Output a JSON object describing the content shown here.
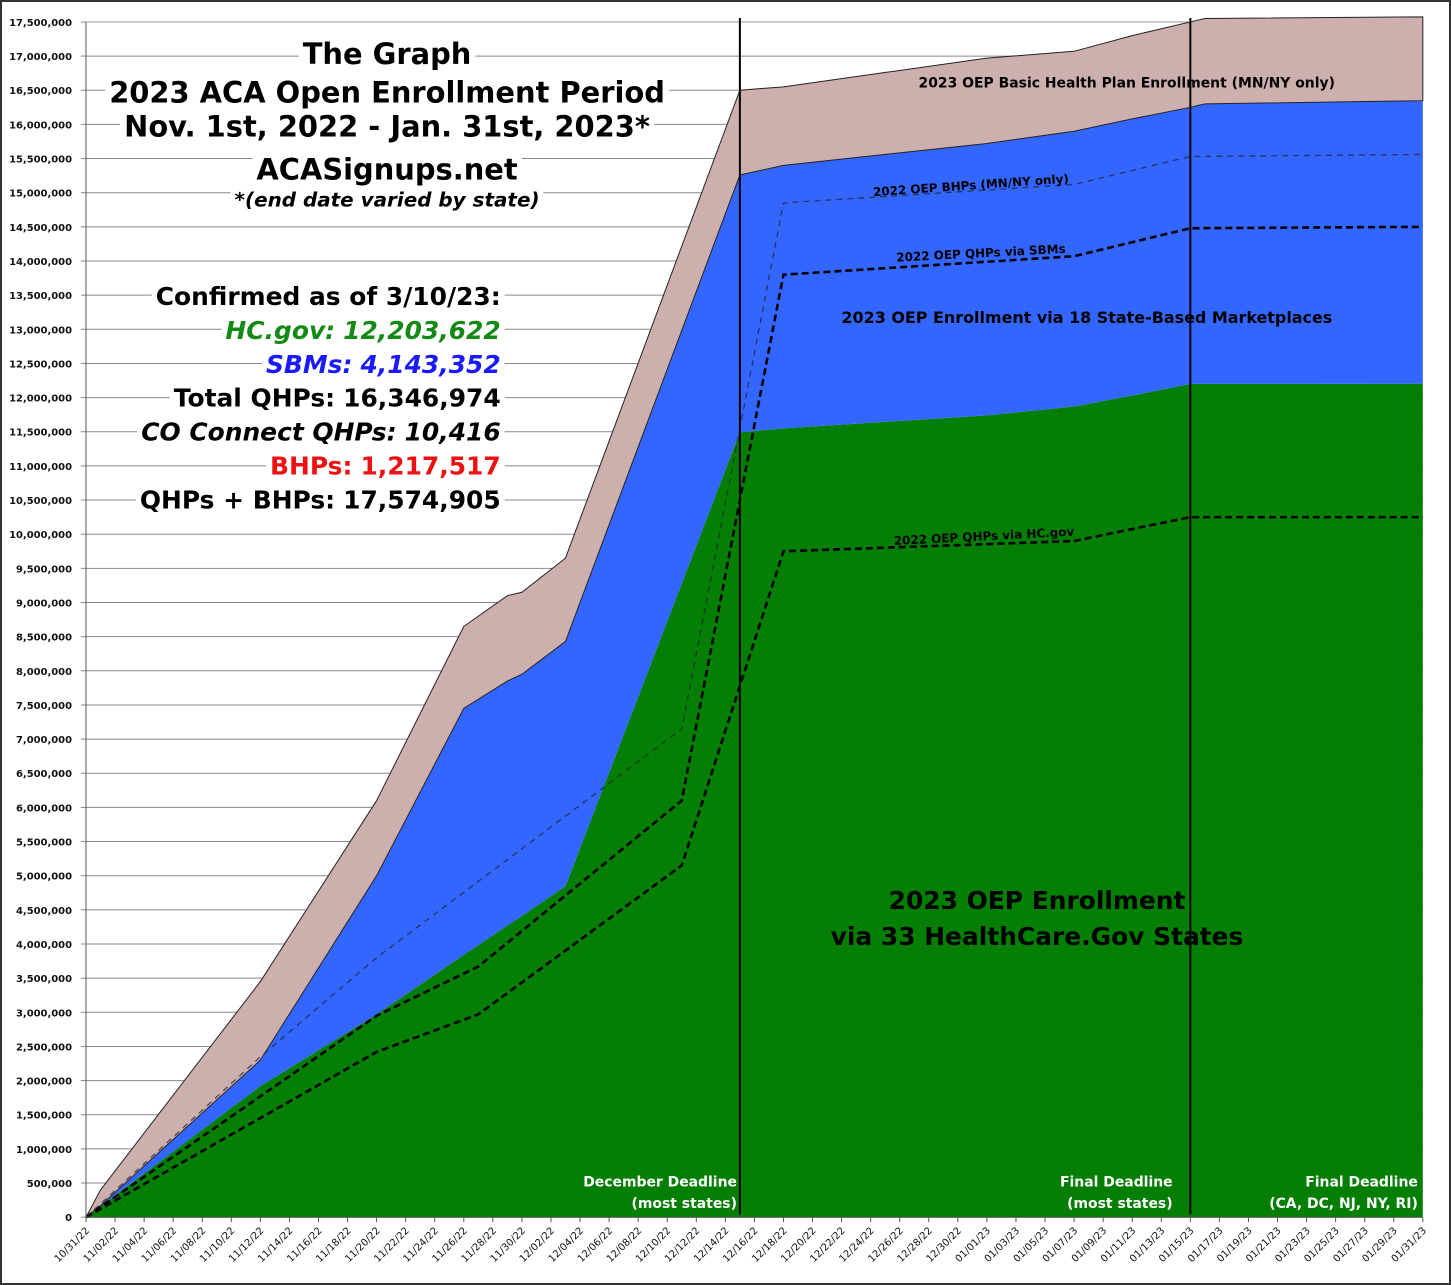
{
  "chart_data": {
    "type": "area",
    "stacked": true,
    "title_lines": [
      "The Graph",
      "2023 ACA Open Enrollment Period",
      "Nov. 1st, 2022 - Jan. 31st, 2023*",
      "ACASignups.net",
      "*(end date varied by state)"
    ],
    "summary": {
      "heading": "Confirmed as of 3/10/23:",
      "lines": [
        {
          "label": "HC.gov:",
          "value": "12,203,622",
          "color": "#138a13",
          "italic": true
        },
        {
          "label": "SBMs:",
          "value": "4,143,352",
          "color": "#1a1aff",
          "italic": true
        },
        {
          "label": "Total QHPs:",
          "value": "16,346,974",
          "color": "#000000",
          "italic": false
        },
        {
          "label": "CO Connect QHPs:",
          "value": "10,416",
          "color": "#000000",
          "italic": true
        },
        {
          "label": "BHPs:",
          "value": "1,217,517",
          "color": "#ee1111",
          "italic": false
        },
        {
          "label": "QHPs + BHPs:",
          "value": "17,574,905",
          "color": "#000000",
          "italic": false
        }
      ]
    },
    "ylim": [
      0,
      17500000
    ],
    "ytick_step": 500000,
    "xlim": [
      "10/31/22",
      "01/31/23"
    ],
    "x_tick_labels": [
      "10/31/22",
      "11/02/22",
      "11/04/22",
      "11/06/22",
      "11/08/22",
      "11/10/22",
      "11/12/22",
      "11/14/22",
      "11/16/22",
      "11/18/22",
      "11/20/22",
      "11/22/22",
      "11/24/22",
      "11/26/22",
      "11/28/22",
      "11/30/22",
      "12/02/22",
      "12/04/22",
      "12/06/22",
      "12/08/22",
      "12/10/22",
      "12/12/22",
      "12/14/22",
      "12/16/22",
      "12/18/22",
      "12/20/22",
      "12/22/22",
      "12/24/22",
      "12/26/22",
      "12/28/22",
      "12/30/22",
      "01/01/23",
      "01/03/23",
      "01/05/23",
      "01/07/23",
      "01/09/23",
      "01/11/23",
      "01/13/23",
      "01/15/23",
      "01/17/23",
      "01/19/23",
      "01/21/23",
      "01/23/23",
      "01/25/23",
      "01/27/23",
      "01/29/23",
      "01/31/23"
    ],
    "grid": "horizontal",
    "dates": [
      "10/31/22",
      "11/01/22",
      "11/12/22",
      "11/20/22",
      "11/26/22",
      "11/29/22",
      "11/30/22",
      "12/03/22",
      "12/15/22",
      "12/18/22",
      "01/01/23",
      "01/07/23",
      "01/11/23",
      "01/15/23",
      "01/16/23",
      "01/31/23"
    ],
    "series": [
      {
        "name": "2023 OEP Enrollment via 33 HealthCare.Gov States",
        "color": "#047f04",
        "values": [
          0,
          160000,
          1920000,
          2970000,
          3840000,
          4270000,
          4410000,
          4850000,
          11490000,
          11550000,
          11740000,
          11870000,
          12030000,
          12200000,
          12200000,
          12203622
        ]
      },
      {
        "name": "2023 OEP Enrollment via 18 State-Based Marketplaces",
        "color": "#3366ff",
        "values": [
          0,
          10000,
          380000,
          2030000,
          3610000,
          3580000,
          3540000,
          3580000,
          3770000,
          3850000,
          3980000,
          4030000,
          4050000,
          4050000,
          4100000,
          4143352
        ]
      },
      {
        "name": "2023 OEP Basic Health Plan Enrollment (MN/NY only)",
        "color": "#cdb0ae",
        "values": [
          0,
          230000,
          1150000,
          1100000,
          1200000,
          1250000,
          1200000,
          1220000,
          1240000,
          1150000,
          1250000,
          1170000,
          1220000,
          1250000,
          1250000,
          1227931
        ]
      }
    ],
    "comparison_lines": [
      {
        "name": "2022 OEP QHPs via HC.gov",
        "style": "thick-dashed",
        "points": [
          [
            "10/31/22",
            0
          ],
          [
            "11/20/22",
            2420000
          ],
          [
            "11/27/22",
            2970000
          ],
          [
            "12/11/22",
            5150000
          ],
          [
            "12/18/22",
            9750000
          ],
          [
            "01/07/23",
            9900000
          ],
          [
            "01/15/23",
            10250000
          ],
          [
            "01/31/23",
            10250000
          ]
        ]
      },
      {
        "name": "2022 OEP QHPs via SBMs",
        "style": "thick-dashed",
        "points": [
          [
            "10/31/22",
            0
          ],
          [
            "11/20/22",
            2950000
          ],
          [
            "11/27/22",
            3670000
          ],
          [
            "12/11/22",
            6100000
          ],
          [
            "12/18/22",
            13800000
          ],
          [
            "01/07/23",
            14070000
          ],
          [
            "01/15/23",
            14480000
          ],
          [
            "01/31/23",
            14500000
          ]
        ]
      },
      {
        "name": "2022 OEP BHPs (MN/NY only)",
        "style": "thin-dashed",
        "points": [
          [
            "10/31/22",
            0
          ],
          [
            "11/12/22",
            2350000
          ],
          [
            "11/20/22",
            3800000
          ],
          [
            "12/11/22",
            7150000
          ],
          [
            "12/18/22",
            14850000
          ],
          [
            "01/07/23",
            15120000
          ],
          [
            "01/15/23",
            15530000
          ],
          [
            "01/31/23",
            15560000
          ]
        ]
      }
    ],
    "deadlines": [
      {
        "date": "12/15/22",
        "line1": "December Deadline",
        "line2": "(most states)"
      },
      {
        "date": "01/15/23",
        "line1": "Final Deadline",
        "line2": "(most states)"
      },
      {
        "date": "01/31/23",
        "line1": "Final Deadline",
        "line2": "(CA, DC, NJ, NY, RI)"
      }
    ],
    "annotations": {
      "bhp_2023": "2023 OEP Basic Health Plan Enrollment (MN/NY only)",
      "bhp_2022": "2022 OEP BHPs (MN/NY only)",
      "sbm_2022": "2022 OEP QHPs via SBMs",
      "sbm_2023": "2023 OEP Enrollment via 18 State-Based Marketplaces",
      "hc_2022": "2022 OEP QHPs via HC.gov",
      "hc_2023_line1": "2023 OEP Enrollment",
      "hc_2023_line2": "via 33 HealthCare.Gov States"
    }
  }
}
